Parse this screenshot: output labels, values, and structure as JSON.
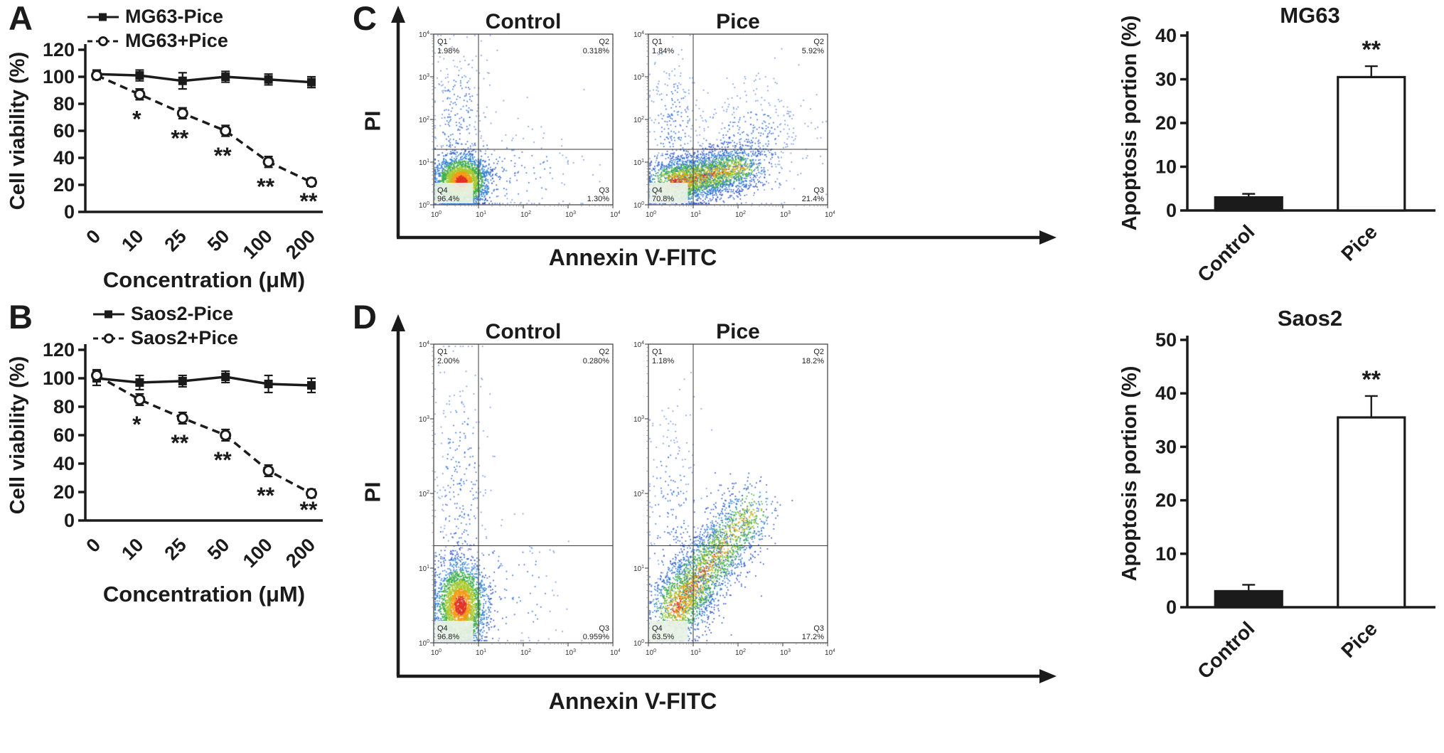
{
  "panels": {
    "A": {
      "letter": "A"
    },
    "B": {
      "letter": "B"
    },
    "C": {
      "letter": "C",
      "ylabel": "PI",
      "xlabel": "Annexin V-FITC"
    },
    "D": {
      "letter": "D",
      "ylabel": "PI",
      "xlabel": "Annexin V-FITC"
    }
  },
  "chart_data": [
    {
      "id": "lineA",
      "type": "line",
      "xlabel": "Concentration (μM)",
      "ylabel": "Cell viability (%)",
      "categories": [
        "0",
        "10",
        "25",
        "50",
        "100",
        "200"
      ],
      "ylim": [
        0,
        120
      ],
      "yticks": [
        0,
        20,
        40,
        60,
        80,
        100,
        120
      ],
      "series": [
        {
          "name": "MG63-Pice",
          "marker": "filled-square",
          "line": "solid",
          "values": [
            102,
            101,
            97,
            100,
            98,
            96
          ],
          "errors": [
            3,
            4,
            6,
            4,
            4,
            4
          ]
        },
        {
          "name": "MG63+Pice",
          "marker": "open-circle",
          "line": "dashed",
          "values": [
            101,
            87,
            73,
            60,
            37,
            22
          ],
          "errors": [
            3,
            4,
            4,
            4,
            4,
            3
          ]
        }
      ],
      "significance": [
        "",
        "*",
        "**",
        "**",
        "**",
        "**"
      ]
    },
    {
      "id": "lineB",
      "type": "line",
      "xlabel": "Concentration (μM)",
      "ylabel": "Cell viability (%)",
      "categories": [
        "0",
        "10",
        "25",
        "50",
        "100",
        "200"
      ],
      "ylim": [
        0,
        120
      ],
      "yticks": [
        0,
        20,
        40,
        60,
        80,
        100,
        120
      ],
      "series": [
        {
          "name": "Saos2-Pice",
          "marker": "filled-square",
          "line": "solid",
          "values": [
            100,
            97,
            98,
            101,
            96,
            95
          ],
          "errors": [
            5,
            5,
            4,
            4,
            6,
            5
          ]
        },
        {
          "name": "Saos2+Pice",
          "marker": "open-circle",
          "line": "dashed",
          "values": [
            102,
            85,
            72,
            60,
            35,
            19
          ],
          "errors": [
            4,
            4,
            4,
            4,
            4,
            3
          ]
        }
      ],
      "significance": [
        "",
        "*",
        "**",
        "**",
        "**",
        "**"
      ]
    },
    {
      "id": "flowCControl",
      "type": "scatter",
      "title": "Control",
      "x_axis": "Annexin V-FITC",
      "y_axis": "PI",
      "x_log_range": [
        0,
        4
      ],
      "y_log_range": [
        0,
        4
      ],
      "quadrant_lines_exp": {
        "x": 1.0,
        "y": 1.3
      },
      "quadrants": [
        {
          "name": "Q1",
          "value": "1.98%"
        },
        {
          "name": "Q2",
          "value": "0.318%"
        },
        {
          "name": "Q3",
          "value": "1.30%"
        },
        {
          "name": "Q4",
          "value": "96.4%"
        }
      ]
    },
    {
      "id": "flowCPice",
      "type": "scatter",
      "title": "Pice",
      "x_axis": "Annexin V-FITC",
      "y_axis": "PI",
      "x_log_range": [
        0,
        4
      ],
      "y_log_range": [
        0,
        4
      ],
      "quadrant_lines_exp": {
        "x": 1.0,
        "y": 1.3
      },
      "quadrants": [
        {
          "name": "Q1",
          "value": "1.84%"
        },
        {
          "name": "Q2",
          "value": "5.92%"
        },
        {
          "name": "Q3",
          "value": "21.4%"
        },
        {
          "name": "Q4",
          "value": "70.8%"
        }
      ]
    },
    {
      "id": "barMG63",
      "type": "bar",
      "title": "MG63",
      "ylabel": "Apoptosis portion (%)",
      "categories": [
        "Control",
        "Pice"
      ],
      "values": [
        3,
        30.5
      ],
      "errors": [
        0.8,
        2.5
      ],
      "ylim": [
        0,
        40
      ],
      "yticks": [
        0,
        10,
        20,
        30,
        40
      ],
      "bar_colors": [
        "#1b1b1b",
        "#ffffff"
      ],
      "significance": [
        "",
        "**"
      ]
    },
    {
      "id": "flowDControl",
      "type": "scatter",
      "title": "Control",
      "x_axis": "Annexin V-FITC",
      "y_axis": "PI",
      "x_log_range": [
        0,
        4
      ],
      "y_log_range": [
        0,
        4
      ],
      "quadrant_lines_exp": {
        "x": 1.0,
        "y": 1.3
      },
      "quadrants": [
        {
          "name": "Q1",
          "value": "2.00%"
        },
        {
          "name": "Q2",
          "value": "0.280%"
        },
        {
          "name": "Q3",
          "value": "0.959%"
        },
        {
          "name": "Q4",
          "value": "96.8%"
        }
      ]
    },
    {
      "id": "flowDPice",
      "type": "scatter",
      "title": "Pice",
      "x_axis": "Annexin V-FITC",
      "y_axis": "PI",
      "x_log_range": [
        0,
        4
      ],
      "y_log_range": [
        0,
        4
      ],
      "quadrant_lines_exp": {
        "x": 1.0,
        "y": 1.3
      },
      "quadrants": [
        {
          "name": "Q1",
          "value": "1.18%"
        },
        {
          "name": "Q2",
          "value": "18.2%"
        },
        {
          "name": "Q3",
          "value": "17.2%"
        },
        {
          "name": "Q4",
          "value": "63.5%"
        }
      ]
    },
    {
      "id": "barSaos2",
      "type": "bar",
      "title": "Saos2",
      "ylabel": "Apoptosis portion (%)",
      "categories": [
        "Control",
        "Pice"
      ],
      "values": [
        3,
        35.5
      ],
      "errors": [
        1.2,
        4
      ],
      "ylim": [
        0,
        50
      ],
      "yticks": [
        0,
        10,
        20,
        30,
        40,
        50
      ],
      "bar_colors": [
        "#1b1b1b",
        "#ffffff"
      ],
      "significance": [
        "",
        "**"
      ]
    }
  ]
}
